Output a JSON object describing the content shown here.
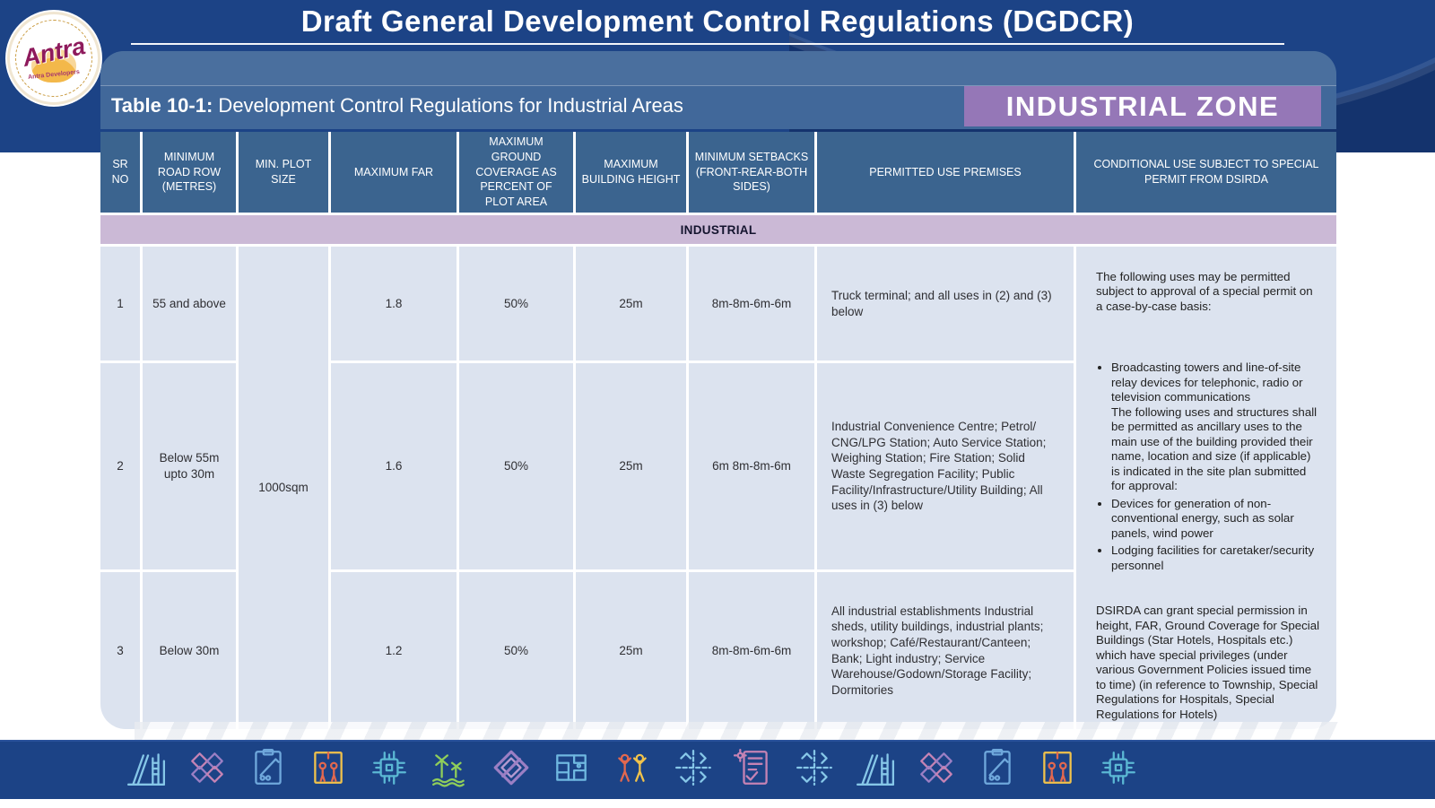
{
  "page": {
    "title": "Draft General Development Control Regulations (DGDCR)"
  },
  "logo": {
    "brand": "Antra",
    "tagline": "Antra Developers"
  },
  "table_bar": {
    "label_bold": "Table 10-1:",
    "label_rest": " Development Control Regulations for Industrial Areas"
  },
  "zone_badge": "INDUSTRIAL ZONE",
  "table": {
    "columns": [
      "SR NO",
      "MINIMUM ROAD ROW (METRES)",
      "MIN. PLOT SIZE",
      "MAXIMUM FAR",
      "MAXIMUM GROUND COVERAGE AS PERCENT OF PLOT AREA",
      "MAXIMUM BUILDING HEIGHT",
      "MINIMUM SETBACKS (FRONT-REAR-BOTH SIDES)",
      "PERMITTED USE PREMISES",
      "CONDITIONAL USE SUBJECT TO SPECIAL PERMIT FROM DSIRDA"
    ],
    "section_label": "INDUSTRIAL",
    "min_plot_size_merged": "1000sqm",
    "rows": [
      {
        "sr": "1",
        "road_row": "55 and above",
        "far": "1.8",
        "coverage": "50%",
        "height": "25m",
        "setbacks": "8m-8m-6m-6m",
        "permitted": "Truck terminal; and all uses in (2) and (3) below"
      },
      {
        "sr": "2",
        "road_row": "Below 55m upto 30m",
        "far": "1.6",
        "coverage": "50%",
        "height": "25m",
        "setbacks": "6m 8m-8m-6m",
        "permitted": "Industrial Convenience Centre; Petrol/ CNG/LPG Station; Auto Service Station; Weighing Station; Fire Station; Solid Waste Segregation Facility; Public Facility/Infrastructure/Utility Building; All uses in (3) below"
      },
      {
        "sr": "3",
        "road_row": "Below 30m",
        "far": "1.2",
        "coverage": "50%",
        "height": "25m",
        "setbacks": "8m-8m-6m-6m",
        "permitted": "All industrial establishments Industrial sheds, utility buildings, industrial plants; workshop; Café/Restaurant/Canteen; Bank; Light industry; Service Warehouse/Godown/Storage Facility; Dormitories"
      }
    ],
    "conditional": {
      "intro": "The following uses may be permitted subject to approval of a special permit on a case-by-case basis:",
      "bullets": [
        "Broadcasting towers and line-of-site relay devices for telephonic, radio or television communications\nThe following uses and structures shall be permitted as ancillary uses to the main use of the building provided their name, location and size (if applicable) is indicated in the site plan submitted for approval:",
        "Devices for generation of non-conventional energy, such as solar panels, wind power",
        "Lodging facilities for caretaker/security personnel"
      ],
      "note": "DSIRDA can grant special permission in height, FAR, Ground Coverage for Special Buildings (Star Hotels, Hospitals etc.) which have special privileges (under various Government Policies issued time to time) (in reference to Township, Special Regulations for Hospitals, Special Regulations for Hotels)"
    }
  },
  "colors": {
    "navy": "#1c4386",
    "steel_blue": "#3b648f",
    "badge_purple": "#9577b7",
    "band_pink": "#cbb9d6",
    "cell_blue_gray": "#dce3ef"
  },
  "footer": {
    "icons": [
      {
        "name": "city-road-icon",
        "motif": "city",
        "color": "#86c7e8",
        "accent": "#86c7e8"
      },
      {
        "name": "weave-pattern-icon",
        "motif": "weave",
        "color": "#c583b4",
        "accent": "#9b7fc4"
      },
      {
        "name": "survey-clipboard-icon",
        "motif": "clipboard",
        "color": "#6fa8dc",
        "accent": "#6fa8dc"
      },
      {
        "name": "elevator-people-icon",
        "motif": "lift",
        "color": "#e2684f",
        "accent": "#f0c24b"
      },
      {
        "name": "circuit-chip-icon",
        "motif": "chip",
        "color": "#5bb8d4",
        "accent": "#5bb8d4"
      },
      {
        "name": "wind-energy-icon",
        "motif": "wind",
        "color": "#8fce5a",
        "accent": "#8fce5a"
      },
      {
        "name": "ribbon-diamond-icon",
        "motif": "ribbon",
        "color": "#9b7fc4",
        "accent": "#b59ad1"
      },
      {
        "name": "site-plan-icon",
        "motif": "plan",
        "color": "#6fb8e0",
        "accent": "#6fb8e0"
      },
      {
        "name": "people-celebrate-icon",
        "motif": "cheer",
        "color": "#e2684f",
        "accent": "#f0c24b"
      },
      {
        "name": "road-junction-icon",
        "motif": "junction",
        "color": "#86c7e8",
        "accent": "#86c7e8"
      },
      {
        "name": "audit-checklist-icon",
        "motif": "audit",
        "color": "#c583b4",
        "accent": "#c583b4"
      },
      {
        "name": "interchange-arrows-icon",
        "motif": "junction",
        "color": "#86c7e8",
        "accent": "#86c7e8"
      }
    ],
    "icon_count": 17
  }
}
